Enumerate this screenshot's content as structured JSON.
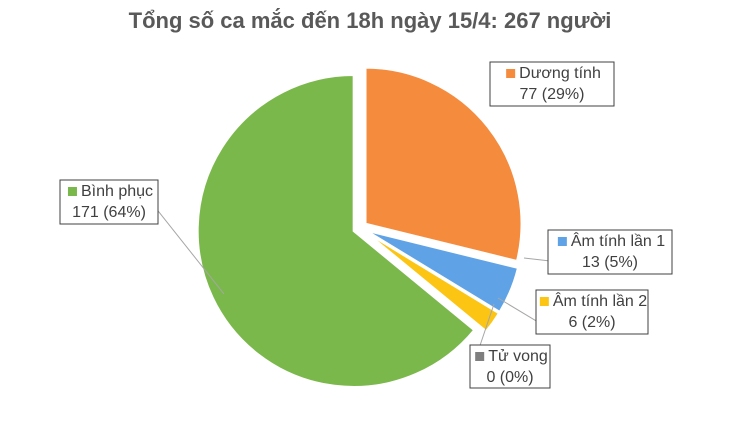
{
  "chart_data": {
    "type": "pie",
    "title": "Tổng số ca mắc đến 18h ngày 15/4: 267 người",
    "categories": [
      "Dương tính",
      "Âm tính lần 1",
      "Âm tính lần 2",
      "Tử vong",
      "Bình phục"
    ],
    "values": [
      77,
      13,
      6,
      0,
      171
    ],
    "value_labels": [
      "77 (29%)",
      "13 (5%)",
      "6 (2%)",
      "0 (0%)",
      "171 (64%)"
    ],
    "colors": [
      "#f58b3d",
      "#5fa3e6",
      "#fcc514",
      "#7f7f7f",
      "#7bb84c"
    ]
  }
}
